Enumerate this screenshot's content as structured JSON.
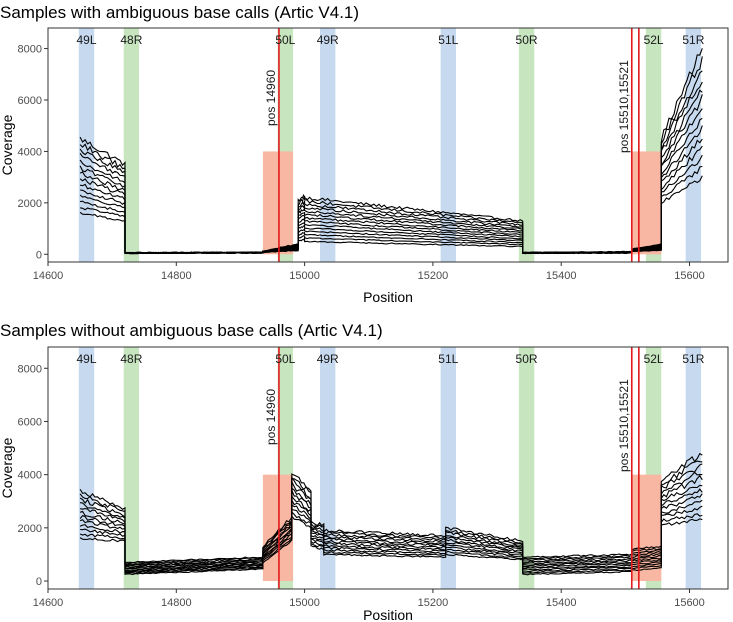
{
  "colors": {
    "blue_band": "#c6d9ef",
    "green_band": "#c7e6bf",
    "red_region": "#f8b7a3",
    "position_line": "#e41a1c",
    "series": "#000000"
  },
  "chart_data": [
    {
      "type": "line",
      "title": "Samples with ambiguous base calls (Artic V4.1)",
      "xlabel": "Position",
      "ylabel": "Coverage",
      "xlim": [
        14600,
        15660
      ],
      "ylim": [
        -300,
        8800
      ],
      "xticks": [
        14600,
        14800,
        15000,
        15200,
        15400,
        15600
      ],
      "xtick_labels": [
        "14600",
        "14800",
        "15000",
        "15200",
        "15400",
        "15600"
      ],
      "yticks": [
        0,
        2000,
        4000,
        6000,
        8000
      ],
      "ytick_labels": [
        "0",
        "2000",
        "4000",
        "6000",
        "8000"
      ],
      "grid": false,
      "amplicon_bands": [
        {
          "label": "49L",
          "x0": 14648,
          "x1": 14672,
          "color": "blue"
        },
        {
          "label": "48R",
          "x0": 14718,
          "x1": 14742,
          "color": "green"
        },
        {
          "label": "50L",
          "x0": 14958,
          "x1": 14982,
          "color": "green"
        },
        {
          "label": "49R",
          "x0": 15024,
          "x1": 15048,
          "color": "blue"
        },
        {
          "label": "51L",
          "x0": 15212,
          "x1": 15236,
          "color": "blue"
        },
        {
          "label": "50R",
          "x0": 15334,
          "x1": 15358,
          "color": "green"
        },
        {
          "label": "52L",
          "x0": 15532,
          "x1": 15556,
          "color": "green"
        },
        {
          "label": "51R",
          "x0": 15594,
          "x1": 15618,
          "color": "blue"
        }
      ],
      "highlight_regions": [
        {
          "x0": 14935,
          "x1": 14982,
          "y0": 0,
          "y1": 4000
        },
        {
          "x0": 15510,
          "x1": 15556,
          "y0": 0,
          "y1": 4000
        }
      ],
      "position_markers": [
        {
          "label": "pos 14960",
          "positions": [
            14960
          ]
        },
        {
          "label": "pos 15510,15521",
          "positions": [
            15510,
            15521
          ]
        }
      ],
      "n_series": 14,
      "series_profile": [
        {
          "x0": 14650,
          "x1": 14720,
          "start": [
            4500,
            1600
          ],
          "end": [
            3500,
            1300
          ]
        },
        {
          "x0": 14720,
          "x1": 14935,
          "start": [
            60,
            40
          ],
          "end": [
            80,
            50
          ]
        },
        {
          "x0": 14935,
          "x1": 14990,
          "start": [
            120,
            80
          ],
          "end": [
            400,
            150
          ]
        },
        {
          "x0": 14990,
          "x1": 15000,
          "start": [
            2100,
            500
          ],
          "end": [
            2300,
            600
          ]
        },
        {
          "x0": 15000,
          "x1": 15340,
          "start": [
            2200,
            500
          ],
          "end": [
            1300,
            300
          ]
        },
        {
          "x0": 15340,
          "x1": 15510,
          "start": [
            70,
            40
          ],
          "end": [
            100,
            50
          ]
        },
        {
          "x0": 15510,
          "x1": 15556,
          "start": [
            200,
            100
          ],
          "end": [
            400,
            150
          ]
        },
        {
          "x0": 15556,
          "x1": 15620,
          "start": [
            4500,
            2000
          ],
          "end": [
            8000,
            3000
          ]
        }
      ]
    },
    {
      "type": "line",
      "title": "Samples without ambiguous base calls (Artic V4.1)",
      "xlabel": "Position",
      "ylabel": "Coverage",
      "xlim": [
        14600,
        15660
      ],
      "ylim": [
        -300,
        8800
      ],
      "xticks": [
        14600,
        14800,
        15000,
        15200,
        15400,
        15600
      ],
      "xtick_labels": [
        "14600",
        "14800",
        "15000",
        "15200",
        "15400",
        "15600"
      ],
      "yticks": [
        0,
        2000,
        4000,
        6000,
        8000
      ],
      "ytick_labels": [
        "0",
        "2000",
        "4000",
        "6000",
        "8000"
      ],
      "grid": false,
      "amplicon_bands": [
        {
          "label": "49L",
          "x0": 14648,
          "x1": 14672,
          "color": "blue"
        },
        {
          "label": "48R",
          "x0": 14718,
          "x1": 14742,
          "color": "green"
        },
        {
          "label": "50L",
          "x0": 14958,
          "x1": 14982,
          "color": "green"
        },
        {
          "label": "49R",
          "x0": 15024,
          "x1": 15048,
          "color": "blue"
        },
        {
          "label": "51L",
          "x0": 15212,
          "x1": 15236,
          "color": "blue"
        },
        {
          "label": "50R",
          "x0": 15334,
          "x1": 15358,
          "color": "green"
        },
        {
          "label": "52L",
          "x0": 15532,
          "x1": 15556,
          "color": "green"
        },
        {
          "label": "51R",
          "x0": 15594,
          "x1": 15618,
          "color": "blue"
        }
      ],
      "highlight_regions": [
        {
          "x0": 14935,
          "x1": 14982,
          "y0": 0,
          "y1": 4000
        },
        {
          "x0": 15510,
          "x1": 15556,
          "y0": 0,
          "y1": 4000
        }
      ],
      "position_markers": [
        {
          "label": "pos 14960",
          "positions": [
            14960
          ]
        },
        {
          "label": "pos 15510,15521",
          "positions": [
            15510,
            15521
          ]
        }
      ],
      "n_series": 12,
      "series_profile": [
        {
          "x0": 14650,
          "x1": 14720,
          "start": [
            3400,
            1600
          ],
          "end": [
            2700,
            1500
          ]
        },
        {
          "x0": 14720,
          "x1": 14935,
          "start": [
            700,
            250
          ],
          "end": [
            900,
            450
          ]
        },
        {
          "x0": 14935,
          "x1": 14980,
          "start": [
            1300,
            700
          ],
          "end": [
            2400,
            1500
          ]
        },
        {
          "x0": 14980,
          "x1": 15010,
          "start": [
            4100,
            2400
          ],
          "end": [
            3400,
            2000
          ]
        },
        {
          "x0": 15010,
          "x1": 15030,
          "start": [
            2200,
            1300
          ],
          "end": [
            2100,
            1200
          ]
        },
        {
          "x0": 15030,
          "x1": 15220,
          "start": [
            1900,
            1000
          ],
          "end": [
            1700,
            900
          ]
        },
        {
          "x0": 15220,
          "x1": 15340,
          "start": [
            2000,
            1000
          ],
          "end": [
            1500,
            800
          ]
        },
        {
          "x0": 15340,
          "x1": 15510,
          "start": [
            900,
            250
          ],
          "end": [
            1000,
            350
          ]
        },
        {
          "x0": 15510,
          "x1": 15556,
          "start": [
            1200,
            400
          ],
          "end": [
            1300,
            500
          ]
        },
        {
          "x0": 15556,
          "x1": 15620,
          "start": [
            3800,
            2100
          ],
          "end": [
            4800,
            2300
          ]
        }
      ]
    }
  ]
}
